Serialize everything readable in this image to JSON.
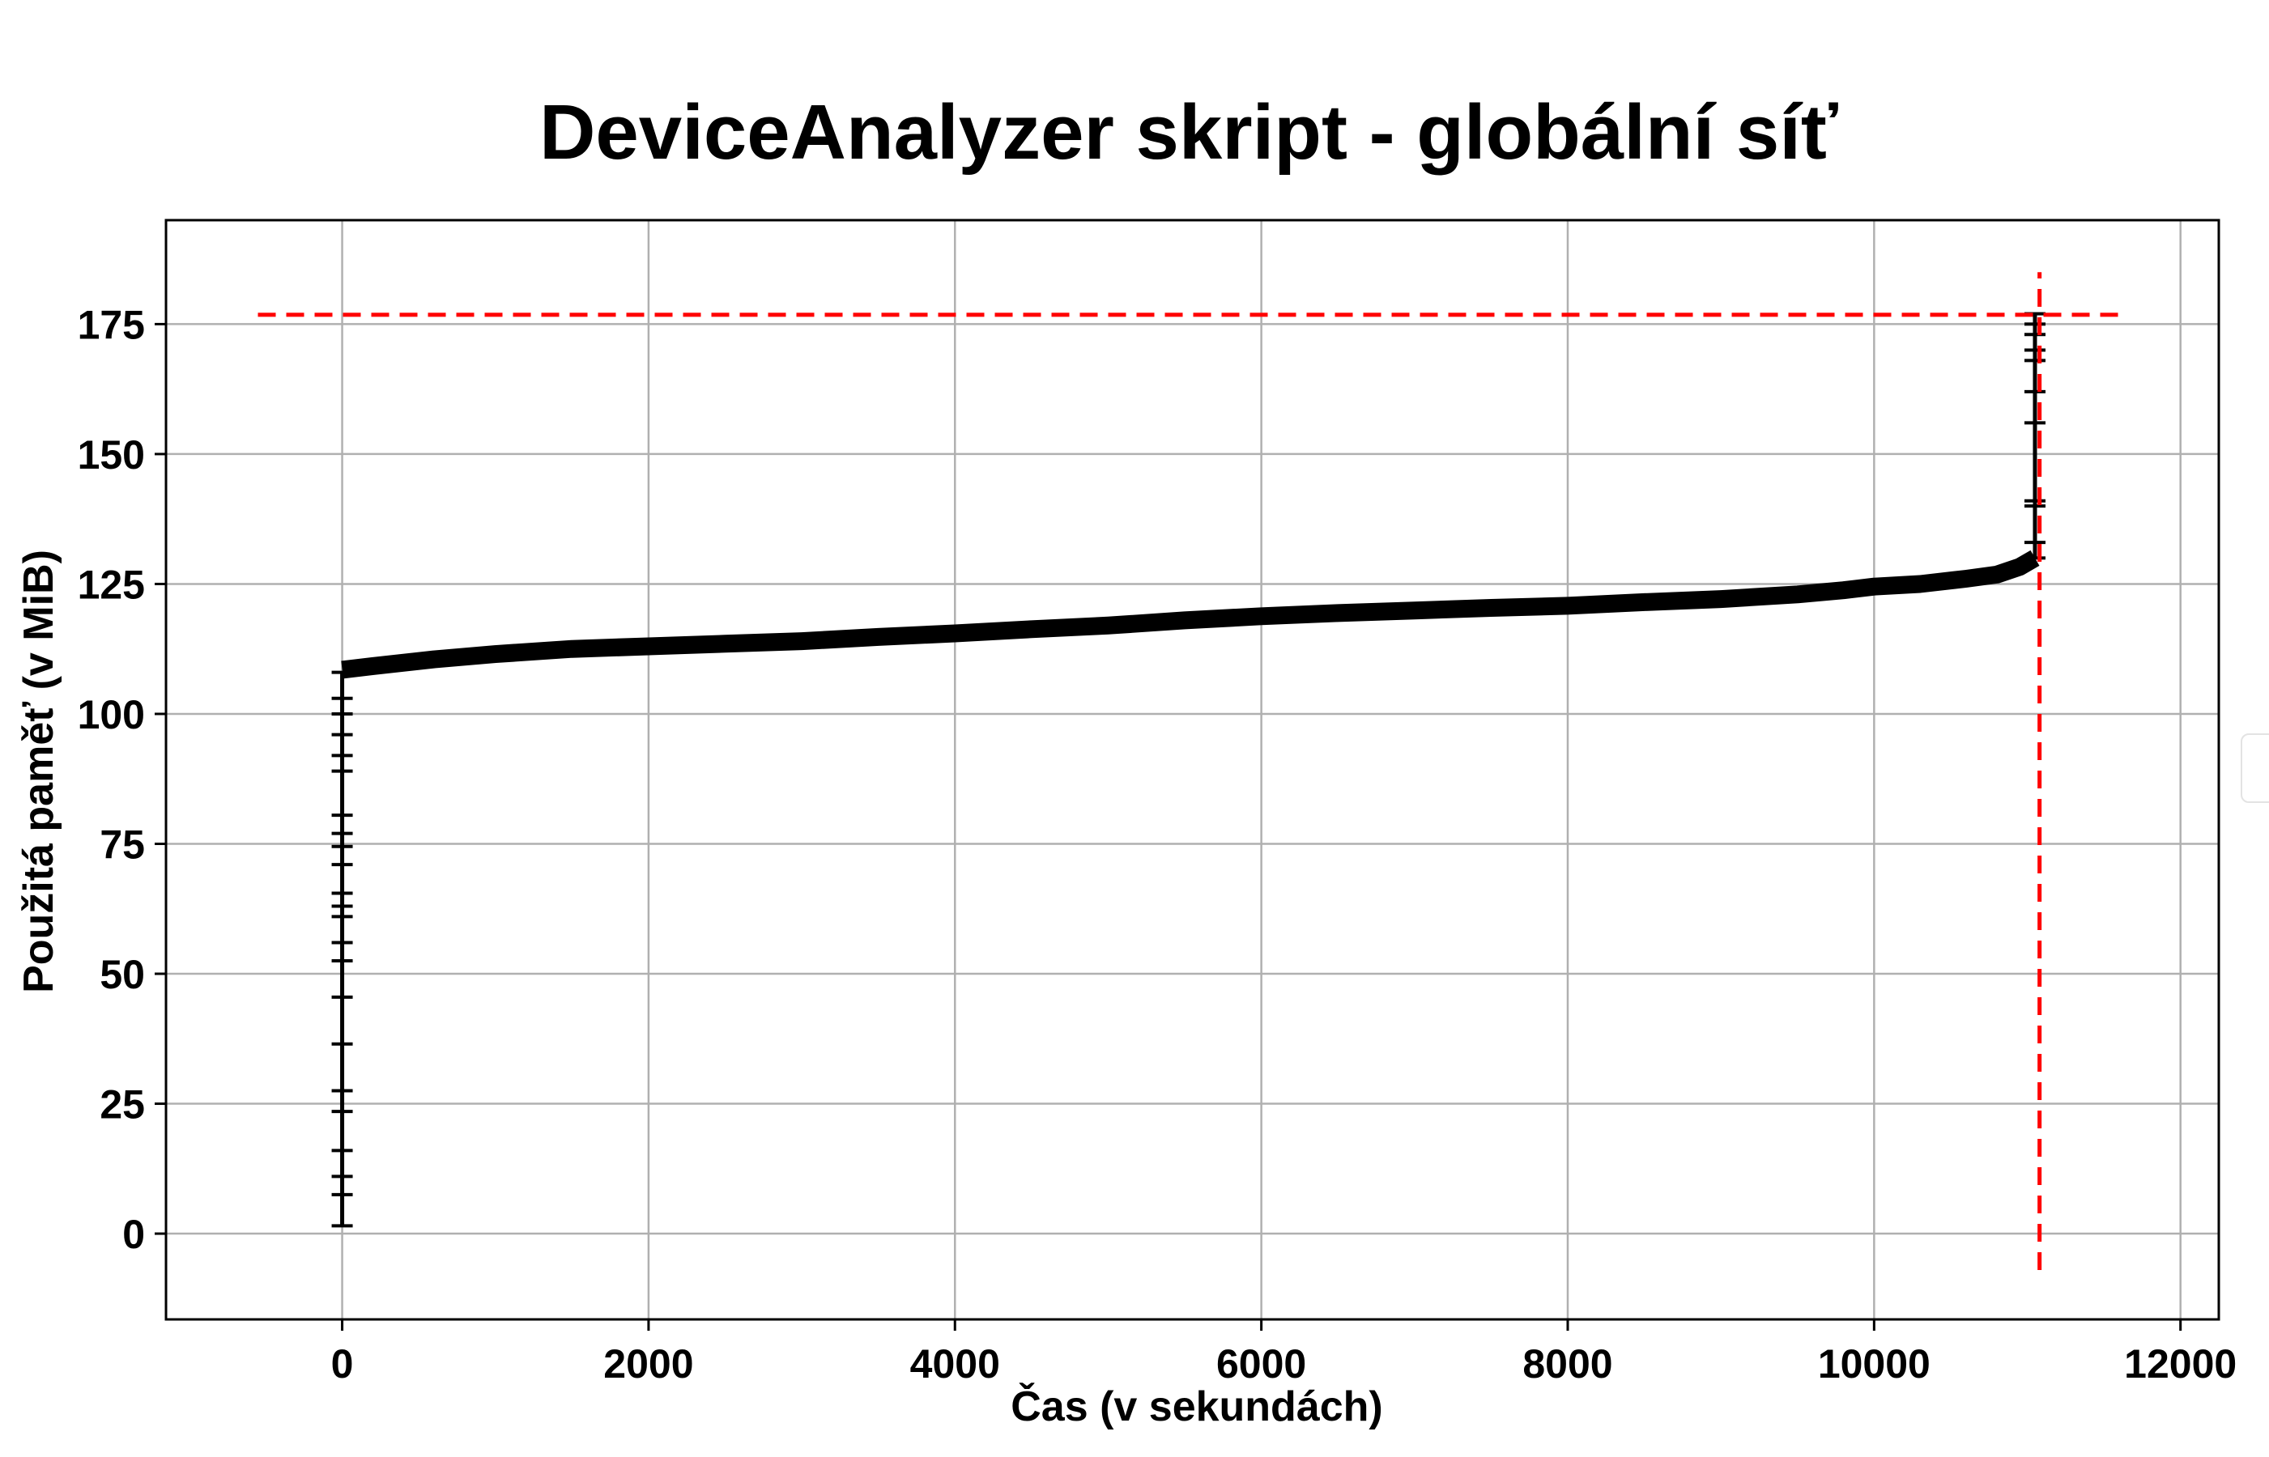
{
  "chart_data": {
    "type": "line",
    "title": "DeviceAnalyzer skript - globální síť",
    "xlabel": "Čas (v sekundách)",
    "ylabel": "Použitá paměť (v MiB)",
    "xlim": [
      -1150,
      12250
    ],
    "ylim": [
      -16.5,
      195
    ],
    "xticks": [
      0,
      2000,
      4000,
      6000,
      8000,
      10000,
      12000
    ],
    "xtick_labels": [
      "0",
      "2000",
      "4000",
      "6000",
      "8000",
      "10000",
      "12000"
    ],
    "yticks": [
      0,
      25,
      50,
      75,
      100,
      125,
      150,
      175
    ],
    "ytick_labels": [
      "0",
      "25",
      "50",
      "75",
      "100",
      "125",
      "150",
      "175"
    ],
    "grid": true,
    "series": [
      {
        "color": "#000000",
        "x": [
          0,
          200,
          600,
          1000,
          1500,
          2000,
          2500,
          3000,
          3500,
          4000,
          4500,
          5000,
          5500,
          6000,
          6500,
          7000,
          7500,
          8000,
          8500,
          9000,
          9500,
          9800,
          10000,
          10300,
          10600,
          10800,
          10950,
          11050
        ],
        "y": [
          108.5,
          109.2,
          110.5,
          111.5,
          112.5,
          113,
          113.5,
          114,
          114.8,
          115.5,
          116.3,
          117,
          118,
          118.8,
          119.4,
          119.9,
          120.4,
          120.8,
          121.5,
          122.1,
          123,
          123.8,
          124.5,
          125,
          126,
          126.8,
          128.3,
          130
        ],
        "startup_points": {
          "x": 0,
          "y": [
            1.5,
            7.5,
            11,
            16,
            23.5,
            27.5,
            36.5,
            45.5,
            52.5,
            56,
            61,
            63,
            65.5,
            71,
            74.5,
            77,
            80.5,
            89,
            92,
            96,
            100,
            103,
            108
          ]
        },
        "peak_points": {
          "x": 11050,
          "y": [
            130,
            133,
            140,
            141,
            156,
            162,
            168,
            170,
            173,
            175,
            177
          ]
        }
      }
    ],
    "reference_lines": [
      {
        "orientation": "horizontal",
        "y": 176.8,
        "x_range": [
          -550,
          11650
        ],
        "color": "#ff0000",
        "style": "dashed"
      },
      {
        "orientation": "vertical",
        "x": 11080,
        "y_range": [
          -7,
          185
        ],
        "color": "#ff0000",
        "style": "dashed"
      }
    ]
  }
}
